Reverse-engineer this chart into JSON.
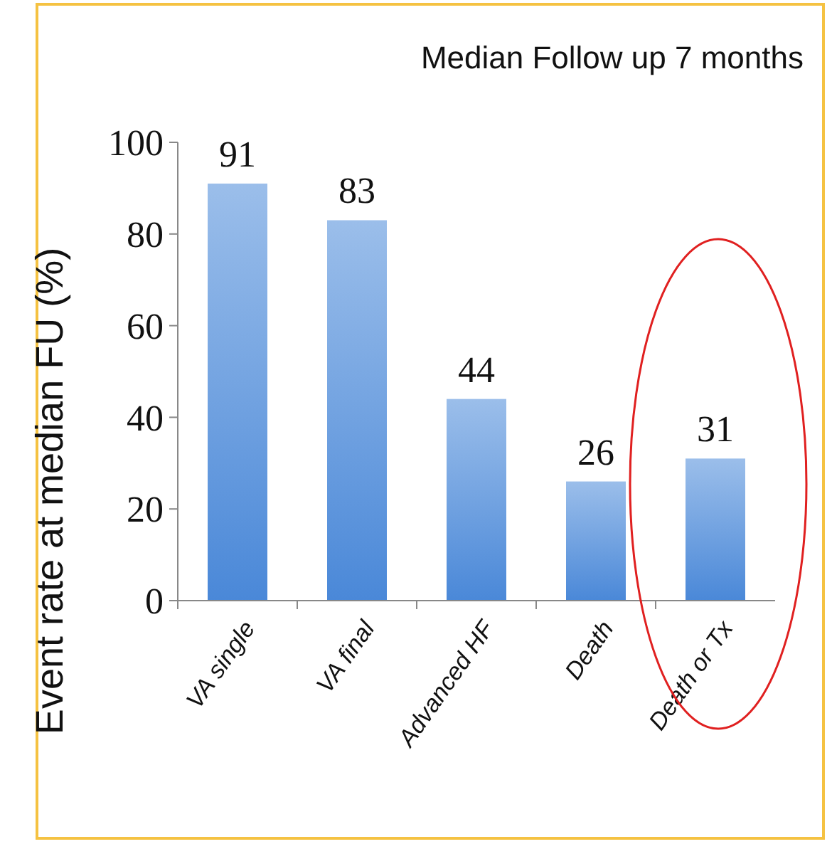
{
  "chart_data": {
    "type": "bar",
    "title": "Median Follow up 7 months",
    "ylabel": "Event rate at median FU (%)",
    "categories": [
      "VA single",
      "VA final",
      "Advanced HF",
      "Death",
      "Death or Tx"
    ],
    "values": [
      91,
      83,
      44,
      26,
      31
    ],
    "color": "#4a88d8",
    "ylim": [
      0,
      100
    ],
    "yticks": [
      0,
      20,
      40,
      60,
      80,
      100
    ],
    "data_labels": true
  }
}
